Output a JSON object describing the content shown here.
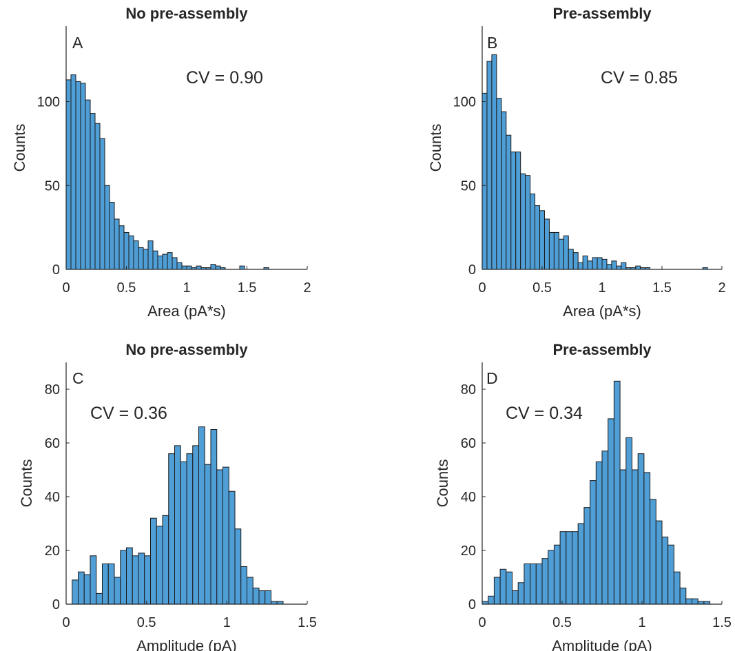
{
  "colors": {
    "bar_fill": "#4f9ed6",
    "bar_edge": "#1a1a1a",
    "axis": "#262626"
  },
  "chart_data": [
    {
      "type": "bar",
      "panel_letter": "A",
      "title": "No pre-assembly",
      "xlabel": "Area (pA*s)",
      "ylabel": "Counts",
      "annotation": "CV = 0.90",
      "bin_width": 0.04,
      "x_start": 0,
      "xlim": [
        0,
        2
      ],
      "ylim": [
        0,
        145
      ],
      "xticks": [
        0,
        0.5,
        1,
        1.5,
        2
      ],
      "xtick_labels": [
        "0",
        "0.5",
        "1",
        "1.5",
        "2"
      ],
      "yticks": [
        0,
        50,
        100
      ],
      "ytick_labels": [
        "0",
        "50",
        "100"
      ],
      "counts": [
        113,
        116,
        112,
        111,
        101,
        93,
        87,
        78,
        50,
        40,
        30,
        26,
        22,
        20,
        17,
        13,
        12,
        17,
        11,
        8,
        9,
        10,
        7,
        4,
        2,
        2,
        1,
        2,
        1,
        1,
        3,
        2,
        1,
        0,
        0,
        0,
        2,
        0,
        0,
        0,
        0,
        1,
        0,
        0,
        0,
        0,
        0,
        0,
        0,
        0
      ],
      "grid": false
    },
    {
      "type": "bar",
      "panel_letter": "B",
      "title": "Pre-assembly",
      "xlabel": "Area (pA*s)",
      "ylabel": "Counts",
      "annotation": "CV = 0.85",
      "bin_width": 0.04,
      "x_start": 0,
      "xlim": [
        0,
        2
      ],
      "ylim": [
        0,
        145
      ],
      "xticks": [
        0,
        0.5,
        1,
        1.5,
        2
      ],
      "xtick_labels": [
        "0",
        "0.5",
        "1",
        "1.5",
        "2"
      ],
      "yticks": [
        0,
        50,
        100
      ],
      "ytick_labels": [
        "0",
        "50",
        "100"
      ],
      "counts": [
        105,
        124,
        128,
        102,
        94,
        80,
        70,
        70,
        57,
        56,
        45,
        38,
        35,
        30,
        22,
        22,
        18,
        20,
        12,
        10,
        4,
        8,
        5,
        7,
        7,
        6,
        3,
        5,
        2,
        4,
        1,
        1,
        2,
        1,
        1,
        0,
        0,
        0,
        0,
        0,
        0,
        0,
        0,
        0,
        0,
        0,
        1,
        0,
        0,
        0
      ],
      "grid": false
    },
    {
      "type": "bar",
      "panel_letter": "C",
      "title": "No pre-assembly",
      "xlabel": "Amplitude (pA)",
      "ylabel": "Counts",
      "annotation": "CV = 0.36",
      "bin_width": 0.0375,
      "x_start": 0.0375,
      "xlim": [
        0,
        1.5
      ],
      "ylim": [
        0,
        90
      ],
      "xticks": [
        0,
        0.5,
        1,
        1.5
      ],
      "xtick_labels": [
        "0",
        "0.5",
        "1",
        "1.5"
      ],
      "yticks": [
        0,
        20,
        40,
        60,
        80
      ],
      "ytick_labels": [
        "0",
        "20",
        "40",
        "60",
        "80"
      ],
      "counts": [
        9,
        12,
        11,
        18,
        4,
        15,
        15,
        10,
        20,
        21,
        18,
        19,
        18,
        32,
        29,
        33,
        56,
        59,
        53,
        56,
        59,
        66,
        52,
        65,
        50,
        51,
        42,
        28,
        14,
        10,
        6,
        5,
        5,
        1,
        1
      ],
      "grid": false
    },
    {
      "type": "bar",
      "panel_letter": "D",
      "title": "Pre-assembly",
      "xlabel": "Amplitude (pA)",
      "ylabel": "Counts",
      "annotation": "CV = 0.34",
      "bin_width": 0.0375,
      "x_start": 0,
      "xlim": [
        0,
        1.5
      ],
      "ylim": [
        0,
        90
      ],
      "xticks": [
        0,
        0.5,
        1,
        1.5
      ],
      "xtick_labels": [
        "0",
        "0.5",
        "1",
        "1.5"
      ],
      "yticks": [
        0,
        20,
        40,
        60,
        80
      ],
      "ytick_labels": [
        "0",
        "20",
        "40",
        "60",
        "80"
      ],
      "counts": [
        1,
        3,
        10,
        13,
        12,
        5,
        8,
        15,
        15,
        15,
        17,
        20,
        22,
        27,
        27,
        27,
        30,
        36,
        46,
        53,
        57,
        69,
        83,
        50,
        62,
        50,
        56,
        49,
        39,
        31,
        25,
        22,
        12,
        6,
        2,
        2,
        1,
        1
      ],
      "grid": false
    }
  ]
}
